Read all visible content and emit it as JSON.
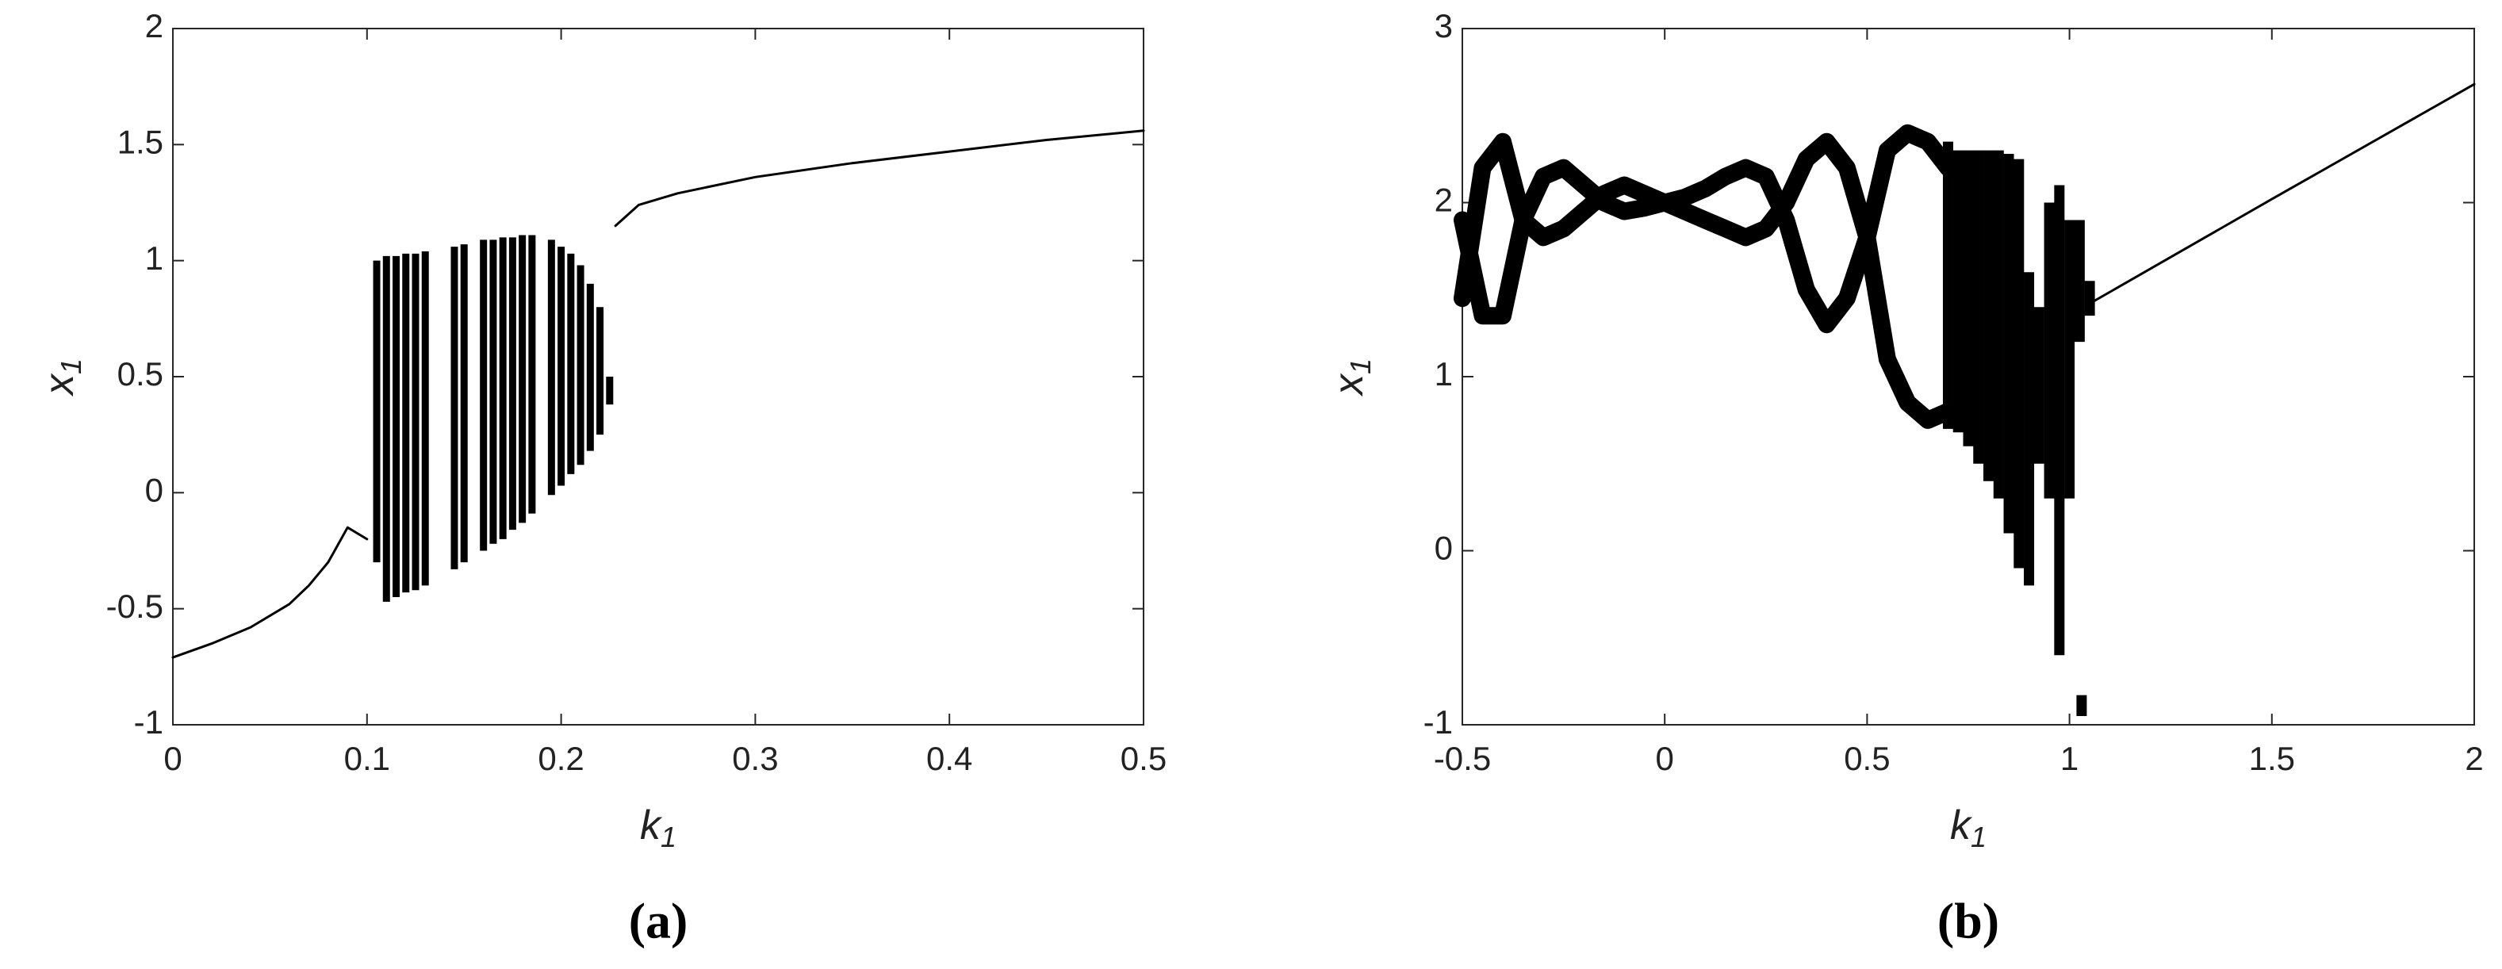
{
  "chart_data": [
    {
      "type": "bifurcation",
      "caption": "(a)",
      "xlabel": "k",
      "xlabel_sub": "1",
      "ylabel": "x",
      "ylabel_sub": "1",
      "xlim": [
        0,
        0.5
      ],
      "xticks": [
        0,
        0.1,
        0.2,
        0.3,
        0.4,
        0.5
      ],
      "ylim": [
        -1,
        2
      ],
      "yticks": [
        -1,
        -0.5,
        0,
        0.5,
        1,
        1.5,
        2
      ],
      "color": "#000000",
      "series": [
        {
          "x": [
            0,
            0.02,
            0.04,
            0.06,
            0.07,
            0.08,
            0.09,
            0.1
          ],
          "values": [
            -0.71,
            -0.65,
            -0.58,
            -0.48,
            -0.4,
            -0.3,
            -0.15,
            -0.2
          ]
        },
        {
          "x": [
            0.228,
            0.24,
            0.26,
            0.3,
            0.35,
            0.4,
            0.45,
            0.5
          ],
          "values": [
            1.15,
            1.24,
            1.29,
            1.36,
            1.42,
            1.47,
            1.52,
            1.56
          ]
        }
      ],
      "bands": {
        "x": [
          0.105,
          0.11,
          0.115,
          0.12,
          0.125,
          0.13,
          0.145,
          0.15,
          0.16,
          0.165,
          0.17,
          0.175,
          0.18,
          0.185,
          0.195,
          0.2,
          0.205,
          0.21,
          0.215,
          0.22,
          0.225
        ],
        "low": [
          -0.3,
          -0.47,
          -0.45,
          -0.43,
          -0.42,
          -0.4,
          -0.33,
          -0.3,
          -0.25,
          -0.22,
          -0.2,
          -0.16,
          -0.13,
          -0.09,
          -0.01,
          0.03,
          0.08,
          0.12,
          0.18,
          0.25,
          0.38
        ],
        "high": [
          1.0,
          1.02,
          1.02,
          1.03,
          1.03,
          1.04,
          1.06,
          1.07,
          1.09,
          1.09,
          1.1,
          1.1,
          1.11,
          1.11,
          1.09,
          1.06,
          1.03,
          0.98,
          0.9,
          0.8,
          0.5
        ]
      }
    },
    {
      "type": "bifurcation",
      "caption": "(b)",
      "xlabel": "k",
      "xlabel_sub": "1",
      "ylabel": "x",
      "ylabel_sub": "1",
      "xlim": [
        -0.5,
        2
      ],
      "xticks": [
        -0.5,
        0,
        0.5,
        1,
        1.5,
        2
      ],
      "ylim": [
        -1,
        3
      ],
      "yticks": [
        -1,
        0,
        1,
        2,
        3
      ],
      "color": "#000000",
      "series": [
        {
          "x": [
            -0.5,
            -0.45,
            -0.4,
            -0.35,
            -0.3,
            -0.25,
            -0.2,
            -0.15,
            -0.1,
            -0.05,
            0,
            0.05,
            0.1,
            0.15,
            0.2,
            0.25,
            0.3,
            0.35,
            0.4,
            0.45,
            0.5,
            0.55,
            0.6,
            0.65,
            0.7
          ],
          "values": [
            1.45,
            2.2,
            2.35,
            1.9,
            1.8,
            1.85,
            1.95,
            2.05,
            2.1,
            2.05,
            2.0,
            1.95,
            1.9,
            1.85,
            1.8,
            1.85,
            2.0,
            2.25,
            2.35,
            2.2,
            1.8,
            2.3,
            2.4,
            2.35,
            2.2
          ]
        },
        {
          "x": [
            -0.5,
            -0.45,
            -0.4,
            -0.35,
            -0.3,
            -0.25,
            -0.2,
            -0.15,
            -0.1,
            -0.05,
            0,
            0.05,
            0.1,
            0.15,
            0.2,
            0.25,
            0.3,
            0.35,
            0.4,
            0.45,
            0.5,
            0.55,
            0.6,
            0.65,
            0.7
          ],
          "values": [
            1.9,
            1.35,
            1.35,
            1.9,
            2.15,
            2.2,
            2.1,
            2.0,
            1.95,
            1.97,
            2.0,
            2.03,
            2.08,
            2.15,
            2.2,
            2.15,
            1.9,
            1.5,
            1.3,
            1.45,
            1.8,
            1.1,
            0.85,
            0.75,
            0.8
          ]
        },
        {
          "x": [
            1.05,
            1.5,
            2
          ],
          "values": [
            1.42,
            2.02,
            2.68
          ]
        }
      ],
      "bands": {
        "x": [
          0.7,
          0.725,
          0.75,
          0.775,
          0.8,
          0.825,
          0.85,
          0.875,
          0.9,
          0.925,
          0.95,
          0.975,
          1.0,
          1.025,
          1.05,
          1.03
        ],
        "low": [
          0.7,
          0.68,
          0.6,
          0.5,
          0.4,
          0.3,
          0.1,
          -0.1,
          -0.2,
          0.5,
          0.3,
          -0.6,
          0.3,
          1.2,
          1.35,
          -0.95
        ],
        "high": [
          2.35,
          2.3,
          2.3,
          2.3,
          2.3,
          2.3,
          2.28,
          2.25,
          1.6,
          1.4,
          2.0,
          2.1,
          1.9,
          1.9,
          1.55,
          -0.83
        ]
      }
    }
  ]
}
